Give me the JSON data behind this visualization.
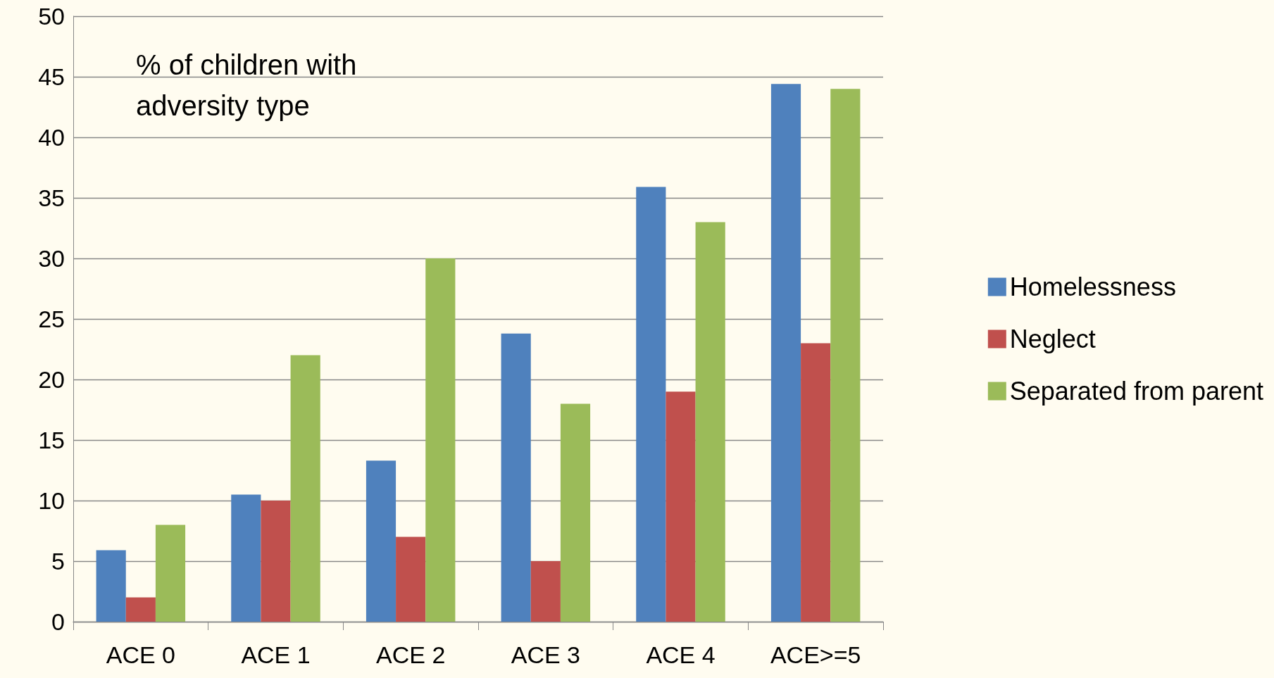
{
  "chart_data": {
    "type": "bar",
    "title": "% of children with adversity type",
    "categories": [
      "ACE 0",
      "ACE 1",
      "ACE 2",
      "ACE 3",
      "ACE 4",
      "ACE>=5"
    ],
    "series": [
      {
        "name": "Homelessness",
        "color": "#4f81bd",
        "values": [
          5.9,
          10.5,
          13.3,
          23.8,
          35.9,
          44.4
        ]
      },
      {
        "name": "Neglect",
        "color": "#c0504d",
        "values": [
          2,
          10,
          7,
          5,
          19,
          23
        ]
      },
      {
        "name": "Separated from parent",
        "color": "#9bbb59",
        "values": [
          8,
          22,
          30,
          18,
          33,
          44
        ]
      }
    ],
    "ylim": [
      0,
      50
    ],
    "yticks": [
      0,
      5,
      10,
      15,
      20,
      25,
      30,
      35,
      40,
      45,
      50
    ],
    "grid": "y",
    "legend": "right"
  }
}
